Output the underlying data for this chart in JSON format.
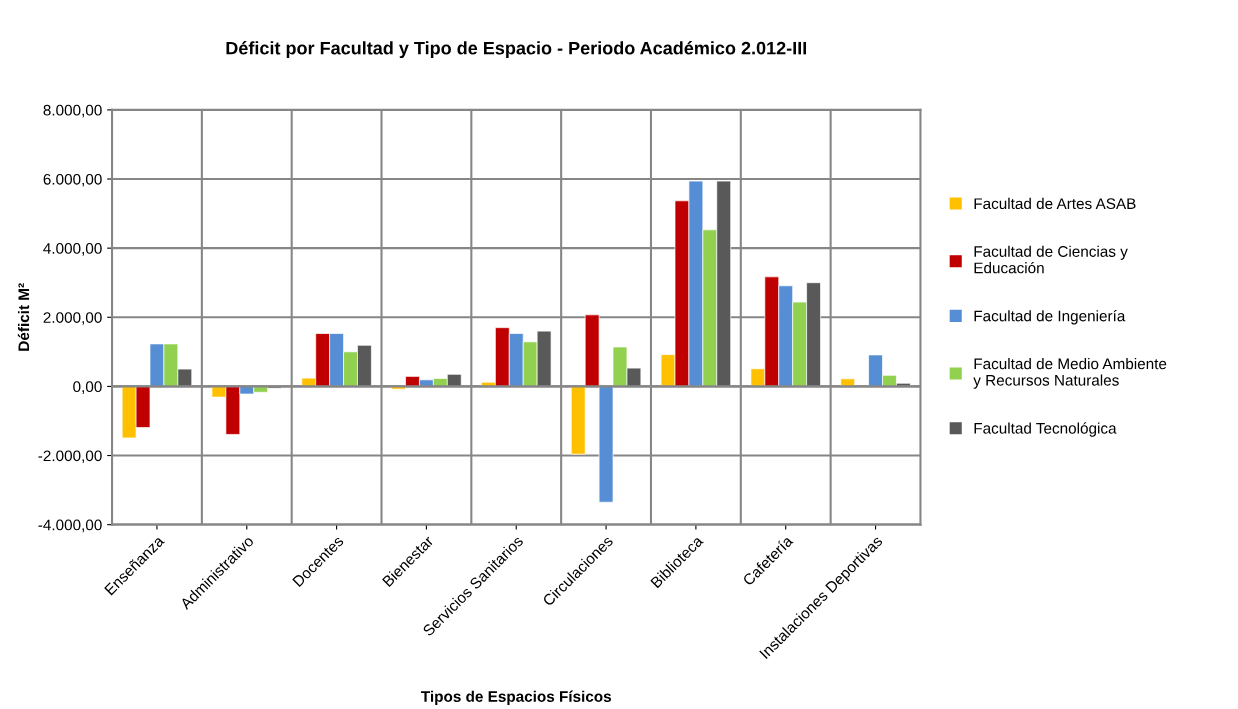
{
  "chart_data": {
    "type": "bar",
    "title": "Déficit por Facultad y Tipo de Espacio - Periodo Académico 2.012-III",
    "xlabel": "Tipos de Espacios Físicos",
    "ylabel": "Déficit M²",
    "categories": [
      "Enseñanza",
      "Administrativo",
      "Docentes",
      "Bienestar",
      "Servicios Sanitarios",
      "Circulaciones",
      "Biblioteca",
      "Cafetería",
      "Instalaciones Deportivas"
    ],
    "series": [
      {
        "name": "Facultad de Artes ASAB",
        "color": "#ffc000",
        "values": [
          -1490,
          -310,
          240,
          -80,
          120,
          -1960,
          920,
          510,
          220
        ]
      },
      {
        "name": "Facultad de Ciencias y Educación",
        "color": "#c00000",
        "values": [
          -1190,
          -1390,
          1530,
          290,
          1700,
          2070,
          5370,
          3170,
          null
        ]
      },
      {
        "name": "Facultad de Ingeniería",
        "color": "#558ed5",
        "values": [
          1230,
          -220,
          1530,
          190,
          1530,
          -3350,
          5940,
          2910,
          910
        ]
      },
      {
        "name": "Facultad de Medio Ambiente y Recursos Naturales",
        "color": "#92d050",
        "values": [
          1230,
          -170,
          1000,
          230,
          1290,
          1140,
          4530,
          2440,
          320
        ]
      },
      {
        "name": "Facultad Tecnológica",
        "color": "#595959",
        "values": [
          500,
          -50,
          1190,
          350,
          1600,
          530,
          5940,
          3000,
          90
        ]
      }
    ],
    "ylim": [
      -4000,
      8000
    ],
    "yticks": [
      {
        "value": -4000,
        "label": "-4.000,00"
      },
      {
        "value": -2000,
        "label": "-2.000,00"
      },
      {
        "value": 0,
        "label": "0,00"
      },
      {
        "value": 2000,
        "label": "2.000,00"
      },
      {
        "value": 4000,
        "label": "4.000,00"
      },
      {
        "value": 6000,
        "label": "6.000,00"
      },
      {
        "value": 8000,
        "label": "8.000,00"
      }
    ],
    "grid": true,
    "legend": "right"
  }
}
